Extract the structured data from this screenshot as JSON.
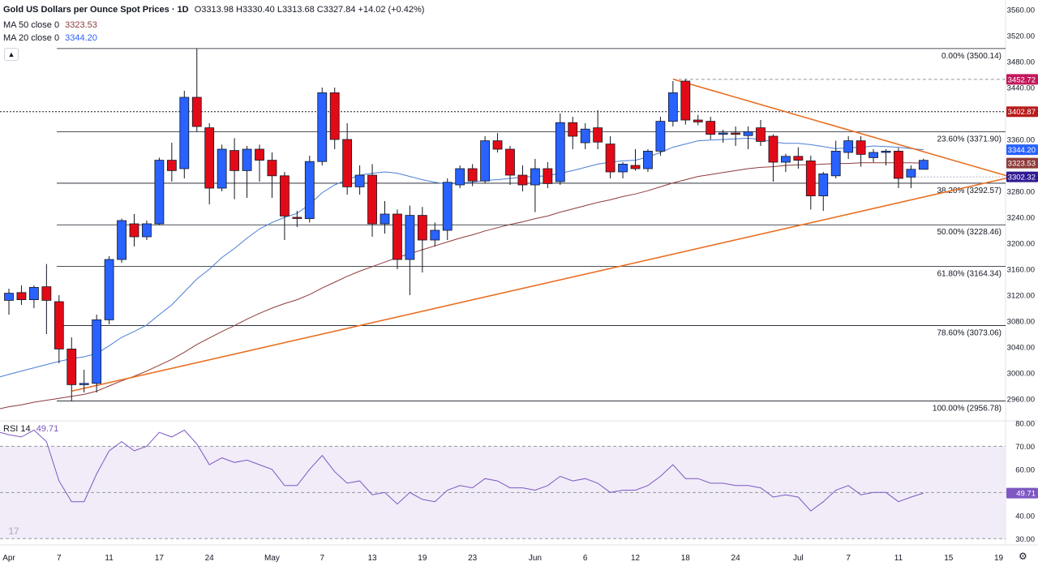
{
  "header": {
    "title": "Gold US Dollars per Ounce Spot Prices · 1D",
    "ohlc": "O3313.98 H3330.40 L3313.68 C3327.84 +14.02 (+0.42%)",
    "ma50_label": "MA 50 close 0",
    "ma50_value": "3323.53",
    "ma20_label": "MA 20 close 0",
    "ma20_value": "3344.20",
    "rsi_label": "RSI 14",
    "rsi_value": "49.71"
  },
  "colors": {
    "up": "#2962ff",
    "down": "#e30a17",
    "ma20": "#4a7fd4",
    "ma50": "#8e3b3b",
    "trend": "#e86f23",
    "rsi": "#7e57c2",
    "rsi_band": "#ede7f6",
    "fib": "#131722"
  },
  "icons": {
    "collapse": "chevron-up-icon",
    "logo": "tradingview-logo",
    "settings": "gear-icon"
  },
  "chart_data": {
    "type": "candlestick",
    "x_tick_labels": [
      "Apr",
      "7",
      "11",
      "17",
      "24",
      "May",
      "7",
      "13",
      "19",
      "23",
      "Jun",
      "6",
      "12",
      "18",
      "24",
      "Jul",
      "7",
      "11",
      "15",
      "19"
    ],
    "y_ticks": [
      2960,
      3000,
      3040,
      3080,
      3120,
      3160,
      3200,
      3240,
      3280,
      3320,
      3360,
      3400,
      3440,
      3480,
      3520,
      3560
    ],
    "ylim": [
      2935,
      3575
    ],
    "candles": [
      {
        "o": 3112,
        "h": 3130,
        "l": 3090,
        "c": 3123
      },
      {
        "o": 3124,
        "h": 3135,
        "l": 3105,
        "c": 3113
      },
      {
        "o": 3113,
        "h": 3135,
        "l": 3100,
        "c": 3132
      },
      {
        "o": 3133,
        "h": 3168,
        "l": 3060,
        "c": 3112
      },
      {
        "o": 3110,
        "h": 3120,
        "l": 3015,
        "c": 3037
      },
      {
        "o": 3037,
        "h": 3055,
        "l": 2957,
        "c": 2982
      },
      {
        "o": 2982,
        "h": 3005,
        "l": 2970,
        "c": 2984
      },
      {
        "o": 2984,
        "h": 3090,
        "l": 2970,
        "c": 3082
      },
      {
        "o": 3082,
        "h": 3180,
        "l": 3075,
        "c": 3175
      },
      {
        "o": 3175,
        "h": 3238,
        "l": 3170,
        "c": 3235
      },
      {
        "o": 3230,
        "h": 3245,
        "l": 3195,
        "c": 3210
      },
      {
        "o": 3210,
        "h": 3235,
        "l": 3205,
        "c": 3230
      },
      {
        "o": 3230,
        "h": 3332,
        "l": 3228,
        "c": 3328
      },
      {
        "o": 3328,
        "h": 3355,
        "l": 3295,
        "c": 3312
      },
      {
        "o": 3315,
        "h": 3435,
        "l": 3300,
        "c": 3425
      },
      {
        "o": 3425,
        "h": 3500,
        "l": 3372,
        "c": 3380
      },
      {
        "o": 3378,
        "h": 3385,
        "l": 3260,
        "c": 3285
      },
      {
        "o": 3285,
        "h": 3352,
        "l": 3280,
        "c": 3345
      },
      {
        "o": 3343,
        "h": 3362,
        "l": 3268,
        "c": 3312
      },
      {
        "o": 3312,
        "h": 3350,
        "l": 3270,
        "c": 3345
      },
      {
        "o": 3345,
        "h": 3352,
        "l": 3295,
        "c": 3328
      },
      {
        "o": 3328,
        "h": 3340,
        "l": 3270,
        "c": 3304
      },
      {
        "o": 3304,
        "h": 3310,
        "l": 3205,
        "c": 3242
      },
      {
        "o": 3240,
        "h": 3250,
        "l": 3225,
        "c": 3239
      },
      {
        "o": 3238,
        "h": 3335,
        "l": 3232,
        "c": 3326
      },
      {
        "o": 3326,
        "h": 3440,
        "l": 3320,
        "c": 3432
      },
      {
        "o": 3432,
        "h": 3440,
        "l": 3345,
        "c": 3360
      },
      {
        "o": 3360,
        "h": 3385,
        "l": 3275,
        "c": 3287
      },
      {
        "o": 3287,
        "h": 3320,
        "l": 3275,
        "c": 3305
      },
      {
        "o": 3305,
        "h": 3322,
        "l": 3210,
        "c": 3230
      },
      {
        "o": 3230,
        "h": 3265,
        "l": 3215,
        "c": 3245
      },
      {
        "o": 3245,
        "h": 3252,
        "l": 3160,
        "c": 3175
      },
      {
        "o": 3175,
        "h": 3258,
        "l": 3120,
        "c": 3243
      },
      {
        "o": 3243,
        "h": 3256,
        "l": 3155,
        "c": 3205
      },
      {
        "o": 3205,
        "h": 3232,
        "l": 3195,
        "c": 3220
      },
      {
        "o": 3220,
        "h": 3300,
        "l": 3205,
        "c": 3294
      },
      {
        "o": 3290,
        "h": 3320,
        "l": 3285,
        "c": 3315
      },
      {
        "o": 3315,
        "h": 3322,
        "l": 3288,
        "c": 3296
      },
      {
        "o": 3296,
        "h": 3365,
        "l": 3292,
        "c": 3358
      },
      {
        "o": 3358,
        "h": 3370,
        "l": 3340,
        "c": 3345
      },
      {
        "o": 3345,
        "h": 3350,
        "l": 3290,
        "c": 3305
      },
      {
        "o": 3305,
        "h": 3320,
        "l": 3280,
        "c": 3290
      },
      {
        "o": 3290,
        "h": 3330,
        "l": 3248,
        "c": 3315
      },
      {
        "o": 3315,
        "h": 3325,
        "l": 3285,
        "c": 3292
      },
      {
        "o": 3295,
        "h": 3400,
        "l": 3290,
        "c": 3386
      },
      {
        "o": 3386,
        "h": 3395,
        "l": 3345,
        "c": 3365
      },
      {
        "o": 3355,
        "h": 3385,
        "l": 3345,
        "c": 3376
      },
      {
        "o": 3378,
        "h": 3405,
        "l": 3345,
        "c": 3356
      },
      {
        "o": 3353,
        "h": 3365,
        "l": 3300,
        "c": 3310
      },
      {
        "o": 3310,
        "h": 3325,
        "l": 3300,
        "c": 3322
      },
      {
        "o": 3320,
        "h": 3345,
        "l": 3312,
        "c": 3315
      },
      {
        "o": 3315,
        "h": 3345,
        "l": 3310,
        "c": 3342
      },
      {
        "o": 3342,
        "h": 3395,
        "l": 3335,
        "c": 3388
      },
      {
        "o": 3388,
        "h": 3450,
        "l": 3380,
        "c": 3432
      },
      {
        "o": 3450,
        "h": 3453,
        "l": 3383,
        "c": 3390
      },
      {
        "o": 3390,
        "h": 3398,
        "l": 3382,
        "c": 3387
      },
      {
        "o": 3388,
        "h": 3395,
        "l": 3360,
        "c": 3368
      },
      {
        "o": 3368,
        "h": 3375,
        "l": 3355,
        "c": 3370
      },
      {
        "o": 3370,
        "h": 3380,
        "l": 3350,
        "c": 3368
      },
      {
        "o": 3366,
        "h": 3380,
        "l": 3345,
        "c": 3372
      },
      {
        "o": 3378,
        "h": 3390,
        "l": 3350,
        "c": 3357
      },
      {
        "o": 3365,
        "h": 3368,
        "l": 3295,
        "c": 3325
      },
      {
        "o": 3325,
        "h": 3338,
        "l": 3310,
        "c": 3334
      },
      {
        "o": 3334,
        "h": 3348,
        "l": 3315,
        "c": 3328
      },
      {
        "o": 3327,
        "h": 3335,
        "l": 3252,
        "c": 3273
      },
      {
        "o": 3273,
        "h": 3310,
        "l": 3250,
        "c": 3307
      },
      {
        "o": 3304,
        "h": 3358,
        "l": 3300,
        "c": 3342
      },
      {
        "o": 3340,
        "h": 3365,
        "l": 3330,
        "c": 3358
      },
      {
        "o": 3358,
        "h": 3365,
        "l": 3318,
        "c": 3337
      },
      {
        "o": 3332,
        "h": 3345,
        "l": 3325,
        "c": 3340
      },
      {
        "o": 3340,
        "h": 3345,
        "l": 3320,
        "c": 3342
      },
      {
        "o": 3342,
        "h": 3347,
        "l": 3285,
        "c": 3300
      },
      {
        "o": 3302,
        "h": 3320,
        "l": 3285,
        "c": 3314
      },
      {
        "o": 3313.98,
        "h": 3330.4,
        "l": 3313.68,
        "c": 3327.84
      }
    ],
    "ma20": [
      2998,
      3003,
      3008,
      3013,
      3018,
      3022,
      3025,
      3030,
      3042,
      3055,
      3064,
      3074,
      3090,
      3105,
      3125,
      3145,
      3160,
      3178,
      3192,
      3208,
      3222,
      3232,
      3240,
      3246,
      3260,
      3278,
      3290,
      3298,
      3305,
      3308,
      3310,
      3308,
      3303,
      3298,
      3294,
      3291,
      3293,
      3294,
      3297,
      3298,
      3300,
      3302,
      3303,
      3304,
      3308,
      3312,
      3317,
      3322,
      3325,
      3327,
      3328,
      3333,
      3340,
      3348,
      3353,
      3358,
      3359,
      3360,
      3361,
      3362,
      3360,
      3356,
      3354,
      3354,
      3352,
      3349,
      3346,
      3347,
      3348,
      3350,
      3349,
      3348,
      3346,
      3344.2
    ],
    "ma50": [
      2948,
      2951,
      2955,
      2958,
      2961,
      2964,
      2967,
      2972,
      2980,
      2988,
      2995,
      3003,
      3012,
      3021,
      3032,
      3044,
      3054,
      3064,
      3073,
      3083,
      3092,
      3100,
      3107,
      3113,
      3121,
      3131,
      3140,
      3149,
      3157,
      3164,
      3171,
      3178,
      3184,
      3190,
      3196,
      3202,
      3208,
      3213,
      3219,
      3224,
      3229,
      3233,
      3238,
      3242,
      3248,
      3253,
      3258,
      3263,
      3267,
      3272,
      3276,
      3281,
      3287,
      3293,
      3298,
      3303,
      3306,
      3309,
      3312,
      3315,
      3317,
      3318,
      3320,
      3321,
      3321,
      3322,
      3323,
      3323,
      3324,
      3324,
      3324,
      3324,
      3324,
      3323.53
    ],
    "rsi": {
      "ylim": [
        28,
        81
      ],
      "y_ticks": [
        30,
        40,
        50,
        60,
        70,
        80
      ],
      "band": [
        30,
        70
      ],
      "mid": 50,
      "values": [
        75,
        74,
        77,
        72,
        55,
        46,
        46,
        58,
        68,
        72,
        68,
        70,
        76,
        74,
        77,
        71,
        62,
        65,
        63,
        64,
        62,
        60,
        53,
        53,
        60,
        66,
        59,
        54,
        55,
        49,
        50,
        45,
        50,
        47,
        46,
        51,
        53,
        52,
        56,
        55,
        52,
        52,
        51,
        53,
        57,
        55,
        56,
        54,
        50,
        51,
        51,
        53,
        57,
        62,
        56,
        56,
        54,
        54,
        53,
        53,
        52,
        48,
        49,
        48,
        42,
        46,
        51,
        53,
        49,
        50,
        50,
        46,
        48,
        49.71
      ]
    },
    "fib_levels": [
      {
        "value": 3500.14,
        "label": "0.00% (3500.14)"
      },
      {
        "value": 3371.9,
        "label": "23.60% (3371.90)"
      },
      {
        "value": 3292.57,
        "label": "38.20% (3292.57)"
      },
      {
        "value": 3228.46,
        "label": "50.00% (3228.46)"
      },
      {
        "value": 3164.34,
        "label": "61.80% (3164.34)"
      },
      {
        "value": 3073.06,
        "label": "78.60% (3073.06)"
      },
      {
        "value": 2956.78,
        "label": "100.00% (2956.78)"
      }
    ],
    "price_tags": [
      {
        "value": 3452.72,
        "label": "3452.72",
        "color": "#c2185b"
      },
      {
        "value": 3402.87,
        "label": "3402.87",
        "color": "#b71c1c"
      },
      {
        "value": 3344.2,
        "label": "3344.20",
        "color": "#2962ff"
      },
      {
        "value": 3323.53,
        "label": "3323.53",
        "color": "#8e3b3b"
      },
      {
        "value": 3302.32,
        "label": "3302.32",
        "color": "#311b92"
      }
    ],
    "rsi_tag": {
      "value": 49.71,
      "label": "49.71",
      "color": "#7e57c2"
    },
    "horizontal_lines": [
      {
        "value": 3452.72,
        "style": "dashed"
      },
      {
        "value": 3402.87,
        "style": "dotted"
      },
      {
        "value": 3302.32,
        "style": "dotted-light"
      }
    ],
    "trendlines": [
      {
        "from": {
          "i": 5,
          "v": 2972
        },
        "to": {
          "i": 80,
          "v": 3302
        }
      },
      {
        "from": {
          "i": 53,
          "v": 3453
        },
        "to": {
          "i": 80,
          "v": 3302
        }
      }
    ]
  }
}
